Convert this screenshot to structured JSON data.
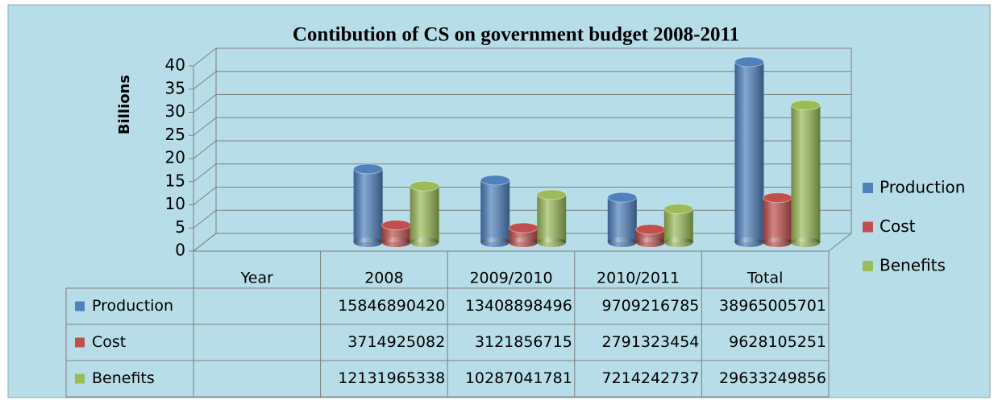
{
  "chart_data": {
    "type": "bar3d",
    "title": "Contibution of CS on government budget 2008-2011",
    "y_label": "Billions",
    "categories": [
      "Year",
      "2008",
      "2009/2010",
      "2010/2011",
      "Total"
    ],
    "series": [
      {
        "name": "Production",
        "color": "#4f81bd",
        "values": [
          null,
          15.84689042,
          13.408898496,
          9.709216785,
          38.965005701
        ],
        "value_labels": [
          null,
          "15846890420",
          "13408898496",
          "9709216785",
          "38965005701"
        ]
      },
      {
        "name": "Cost",
        "color": "#c0504d",
        "values": [
          null,
          3.714925082,
          3.121856715,
          2.791323454,
          9.628105251
        ],
        "value_labels": [
          null,
          "3714925082",
          "3121856715",
          "2791323454",
          "9628105251"
        ]
      },
      {
        "name": "Benefits",
        "color": "#9bbb59",
        "values": [
          null,
          12.131965338,
          10.287041781,
          7.214242737,
          29.633249856
        ],
        "value_labels": [
          null,
          "12131965338",
          "10287041781",
          "7214242737",
          "29633249856"
        ]
      }
    ],
    "ylim": [
      0,
      40
    ],
    "yticks": [
      0,
      5,
      10,
      15,
      20,
      25,
      30,
      35,
      40
    ],
    "grid": true,
    "legend": "right"
  }
}
